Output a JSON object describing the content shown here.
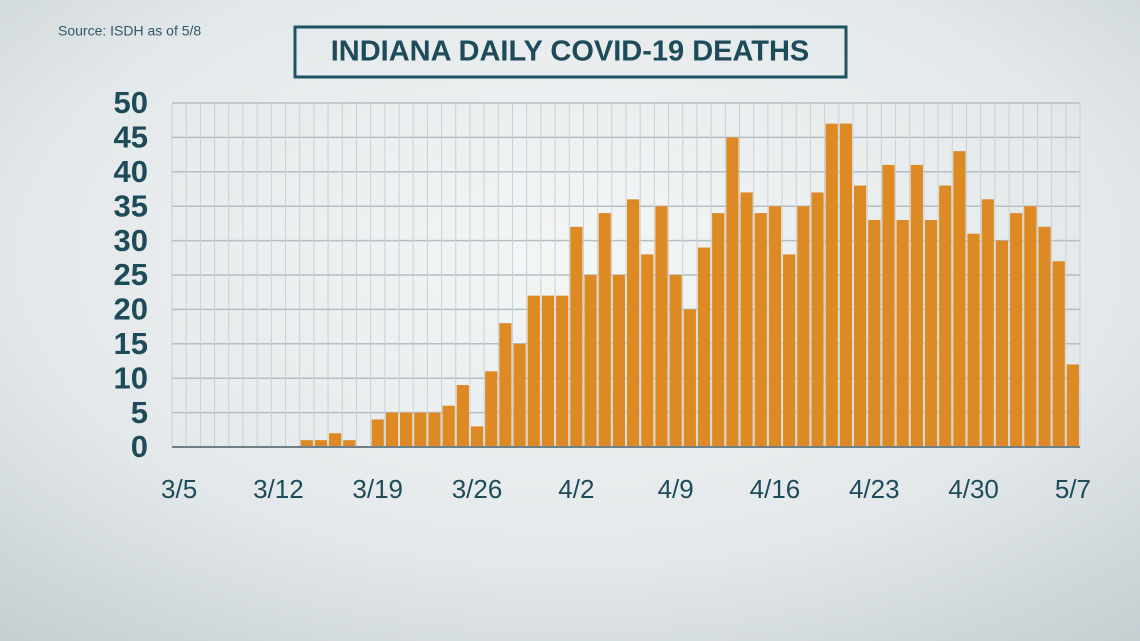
{
  "chart_data": {
    "type": "bar",
    "title": "INDIANA DAILY COVID-19 DEATHS",
    "source": "Source: ISDH as of 5/8",
    "categories": [
      "3/5",
      null,
      null,
      null,
      null,
      null,
      null,
      "3/12",
      null,
      null,
      null,
      null,
      null,
      null,
      "3/19",
      null,
      null,
      null,
      null,
      null,
      null,
      "3/26",
      null,
      null,
      null,
      null,
      null,
      null,
      "4/2",
      null,
      null,
      null,
      null,
      null,
      null,
      "4/9",
      null,
      null,
      null,
      null,
      null,
      null,
      "4/16",
      null,
      null,
      null,
      null,
      null,
      null,
      "4/23",
      null,
      null,
      null,
      null,
      null,
      null,
      "4/30",
      null,
      null,
      null,
      null,
      null,
      null,
      "5/7"
    ],
    "values": [
      0,
      0,
      0,
      0,
      0,
      0,
      0,
      0,
      0,
      1,
      1,
      2,
      1,
      0,
      4,
      5,
      5,
      5,
      5,
      6,
      9,
      3,
      11,
      18,
      15,
      22,
      22,
      22,
      32,
      25,
      34,
      25,
      36,
      28,
      35,
      25,
      20,
      29,
      34,
      45,
      37,
      34,
      35,
      28,
      35,
      37,
      47,
      47,
      38,
      33,
      41,
      33,
      41,
      33,
      38,
      43,
      31,
      36,
      30,
      34,
      35,
      32,
      27,
      12
    ],
    "color": "#de8a24",
    "ylim": [
      0,
      50
    ],
    "yticks": [
      0,
      5,
      10,
      15,
      20,
      25,
      30,
      35,
      40,
      45,
      50
    ],
    "grid": true
  }
}
